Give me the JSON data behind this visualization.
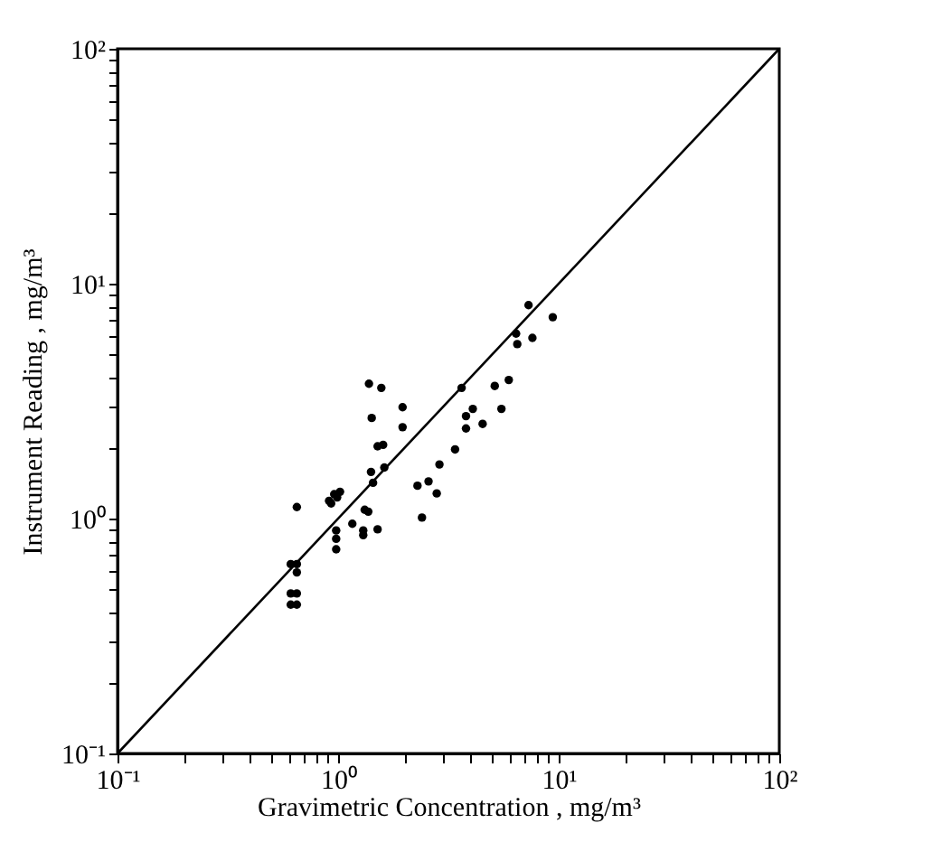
{
  "chart_data": {
    "type": "scatter",
    "xlabel": "Gravimetric Concentration , mg/m³",
    "ylabel": "Instrument Reading , mg/m³",
    "log": "xy",
    "grid": false,
    "marker": "circle",
    "xlim": [
      0.1,
      100
    ],
    "ylim": [
      0.1,
      100
    ],
    "xticks": [
      {
        "value": 0.1,
        "label": "10⁻¹"
      },
      {
        "value": 0.2,
        "label": null
      },
      {
        "value": 0.3,
        "label": null
      },
      {
        "value": 0.4,
        "label": null
      },
      {
        "value": 0.5,
        "label": null
      },
      {
        "value": 0.6,
        "label": null
      },
      {
        "value": 0.7,
        "label": null
      },
      {
        "value": 0.8,
        "label": null
      },
      {
        "value": 0.9,
        "label": null
      },
      {
        "value": 1,
        "label": "10⁰"
      },
      {
        "value": 2,
        "label": null
      },
      {
        "value": 3,
        "label": null
      },
      {
        "value": 4,
        "label": null
      },
      {
        "value": 5,
        "label": null
      },
      {
        "value": 6,
        "label": null
      },
      {
        "value": 7,
        "label": null
      },
      {
        "value": 8,
        "label": null
      },
      {
        "value": 9,
        "label": null
      },
      {
        "value": 10,
        "label": "10¹"
      },
      {
        "value": 20,
        "label": null
      },
      {
        "value": 30,
        "label": null
      },
      {
        "value": 40,
        "label": null
      },
      {
        "value": 50,
        "label": null
      },
      {
        "value": 60,
        "label": null
      },
      {
        "value": 70,
        "label": null
      },
      {
        "value": 80,
        "label": null
      },
      {
        "value": 90,
        "label": null
      },
      {
        "value": 100,
        "label": "10²"
      }
    ],
    "yticks": [
      {
        "value": 0.1,
        "label": "10⁻¹"
      },
      {
        "value": 0.2,
        "label": null
      },
      {
        "value": 0.3,
        "label": null
      },
      {
        "value": 0.4,
        "label": null
      },
      {
        "value": 0.5,
        "label": null
      },
      {
        "value": 0.6,
        "label": null
      },
      {
        "value": 0.7,
        "label": null
      },
      {
        "value": 0.8,
        "label": null
      },
      {
        "value": 0.9,
        "label": null
      },
      {
        "value": 1,
        "label": "10⁰"
      },
      {
        "value": 2,
        "label": null
      },
      {
        "value": 3,
        "label": null
      },
      {
        "value": 4,
        "label": null
      },
      {
        "value": 5,
        "label": null
      },
      {
        "value": 6,
        "label": null
      },
      {
        "value": 7,
        "label": null
      },
      {
        "value": 8,
        "label": null
      },
      {
        "value": 9,
        "label": null
      },
      {
        "value": 10,
        "label": "10¹"
      },
      {
        "value": 20,
        "label": null
      },
      {
        "value": 30,
        "label": null
      },
      {
        "value": 40,
        "label": null
      },
      {
        "value": 50,
        "label": null
      },
      {
        "value": 60,
        "label": null
      },
      {
        "value": 70,
        "label": null
      },
      {
        "value": 80,
        "label": null
      },
      {
        "value": 90,
        "label": null
      },
      {
        "value": 100,
        "label": "10²"
      }
    ],
    "series": [
      {
        "color": "#000000",
        "x": [
          0.61,
          0.65,
          0.65,
          0.61,
          0.65,
          0.61,
          0.65,
          0.65,
          0.91,
          0.96,
          1.02,
          0.93,
          0.99,
          0.98,
          0.98,
          0.98,
          1.16,
          1.32,
          1.37,
          1.3,
          1.3,
          1.51,
          1.38,
          1.57,
          1.42,
          1.51,
          1.6,
          1.41,
          1.44,
          1.62,
          1.96,
          1.96,
          2.29,
          2.4,
          2.57,
          2.8,
          2.88,
          3.39,
          3.63,
          3.8,
          3.8,
          4.08,
          4.52,
          5.13,
          5.5,
          5.94,
          6.41,
          6.49,
          7.6,
          7.3,
          9.4
        ],
        "values": [
          0.64,
          0.64,
          0.59,
          0.48,
          0.48,
          0.43,
          0.43,
          1.12,
          1.19,
          1.27,
          1.3,
          1.16,
          1.23,
          0.89,
          0.82,
          0.74,
          0.95,
          1.09,
          1.07,
          0.89,
          0.85,
          0.9,
          3.75,
          3.6,
          2.68,
          2.03,
          2.06,
          1.58,
          1.42,
          1.65,
          2.98,
          2.45,
          1.38,
          1.01,
          1.44,
          1.28,
          1.7,
          1.97,
          3.6,
          2.73,
          2.42,
          2.93,
          2.53,
          3.67,
          2.93,
          3.89,
          6.13,
          5.53,
          5.88,
          8.1,
          7.2
        ]
      },
      {
        "type": "line",
        "marker": "none",
        "color": "#000000",
        "x": [
          0.1,
          100
        ],
        "values": [
          0.1,
          100
        ]
      }
    ]
  }
}
